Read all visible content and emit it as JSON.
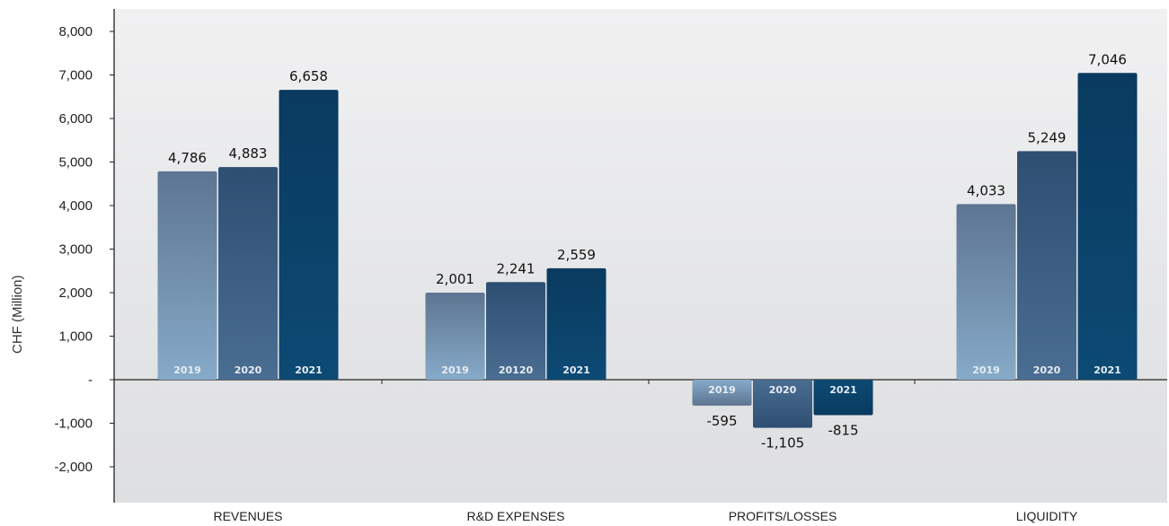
{
  "chart_data": {
    "type": "bar",
    "title": "",
    "xlabel": "",
    "ylabel": "CHF (Million)",
    "ylim": [
      -2800,
      8400
    ],
    "yticks": [
      8000,
      7000,
      6000,
      5000,
      4000,
      3000,
      2000,
      1000,
      0,
      -1000,
      -2000
    ],
    "ytick_labels": [
      "8,000",
      "7,000",
      "6,000",
      "5,000",
      "4,000",
      "3,000",
      "2,000",
      "1,000",
      "-",
      "-1,000",
      "-2,000"
    ],
    "grid": false,
    "categories": [
      "REVENUES",
      "R&D EXPENSES",
      "PROFITS/LOSSES",
      "LIQUIDITY"
    ],
    "groups": [
      {
        "category": "REVENUES",
        "bars": [
          {
            "year": "2019",
            "value": 4786,
            "label": "4,786"
          },
          {
            "year": "2020",
            "value": 4883,
            "label": "4,883"
          },
          {
            "year": "2021",
            "value": 6658,
            "label": "6,658"
          }
        ]
      },
      {
        "category": "R&D EXPENSES",
        "bars": [
          {
            "year": "2019",
            "value": 2001,
            "label": "2,001"
          },
          {
            "year": "20120",
            "value": 2241,
            "label": "2,241"
          },
          {
            "year": "2021",
            "value": 2559,
            "label": "2,559"
          }
        ]
      },
      {
        "category": "PROFITS/LOSSES",
        "bars": [
          {
            "year": "2019",
            "value": -595,
            "label": "-595"
          },
          {
            "year": "2020",
            "value": -1105,
            "label": "-1,105"
          },
          {
            "year": "2021",
            "value": -815,
            "label": "-815"
          }
        ]
      },
      {
        "category": "LIQUIDITY",
        "bars": [
          {
            "year": "2019",
            "value": 4033,
            "label": "4,033"
          },
          {
            "year": "2020",
            "value": 5249,
            "label": "5,249"
          },
          {
            "year": "2021",
            "value": 7046,
            "label": "7,046"
          }
        ]
      }
    ],
    "colors": {
      "2019": [
        "#5d7592",
        "#86aac8"
      ],
      "2020": [
        "#2e4f72",
        "#4a6d92"
      ],
      "2021": [
        "#0a3a5f",
        "#0c4a74"
      ]
    }
  }
}
